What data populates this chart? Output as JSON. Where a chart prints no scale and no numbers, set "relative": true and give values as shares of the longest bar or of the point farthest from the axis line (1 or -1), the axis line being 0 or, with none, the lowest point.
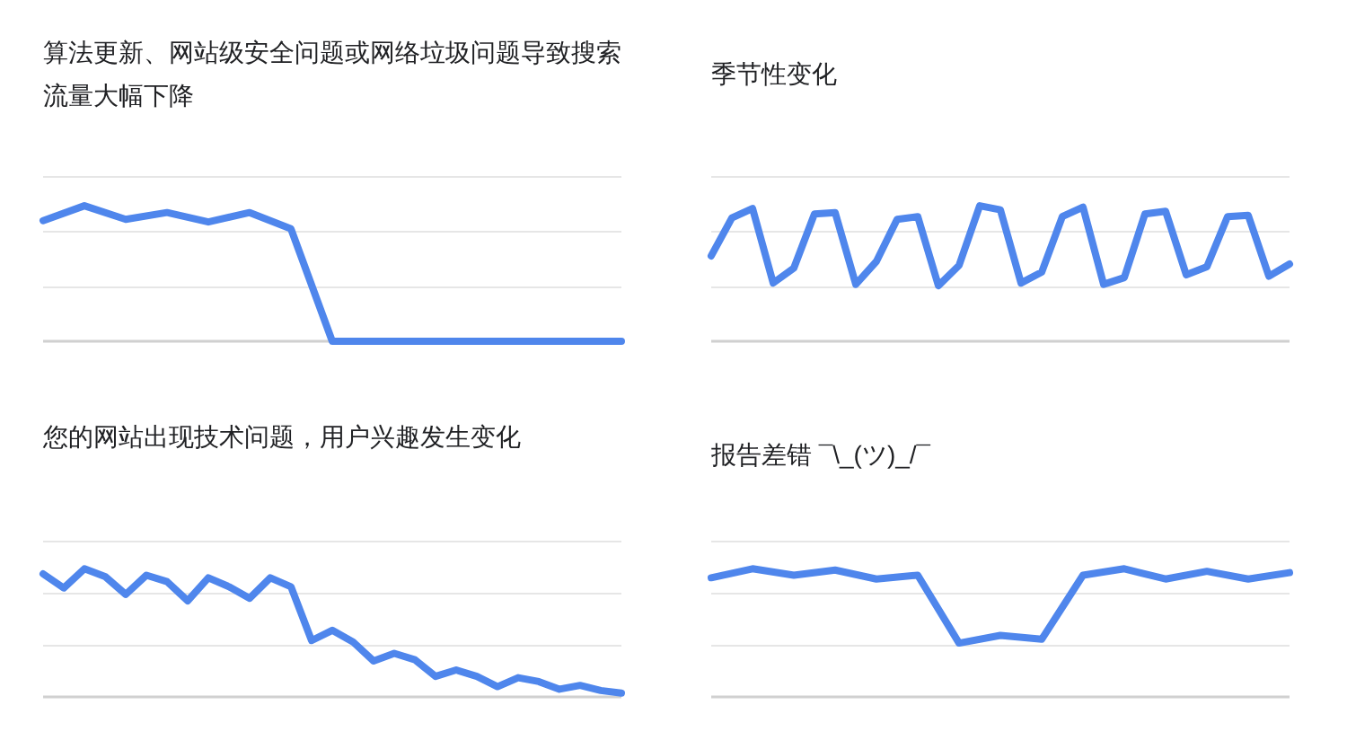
{
  "chart_data": [
    {
      "type": "line",
      "title": "算法更新、网站级安全问题或网络垃圾问题导致搜索流量大幅下降",
      "relative": true,
      "color": "#4f86ec",
      "categories": [
        null,
        null,
        null,
        null,
        null,
        null,
        null,
        null,
        null,
        null,
        null,
        null,
        null,
        null,
        null
      ],
      "values": [
        0.89,
        1,
        0.9,
        0.95,
        0.88,
        0.95,
        0.83,
        0,
        0,
        0,
        0,
        0,
        0,
        0,
        0
      ]
    },
    {
      "type": "line",
      "title": "季节性变化",
      "relative": true,
      "color": "#4f86ec",
      "categories": [
        null,
        null,
        null,
        null,
        null,
        null,
        null,
        null,
        null,
        null,
        null,
        null,
        null,
        null,
        null,
        null,
        null,
        null,
        null,
        null,
        null,
        null,
        null,
        null,
        null,
        null,
        null,
        null,
        null
      ],
      "values": [
        0.63,
        0.91,
        0.98,
        0.43,
        0.54,
        0.94,
        0.95,
        0.42,
        0.59,
        0.9,
        0.92,
        0.41,
        0.56,
        1,
        0.97,
        0.43,
        0.51,
        0.92,
        0.99,
        0.42,
        0.47,
        0.94,
        0.96,
        0.49,
        0.55,
        0.92,
        0.93,
        0.48,
        0.57
      ]
    },
    {
      "type": "line",
      "title": "您的网站出现技术问题，用户兴趣发生变化",
      "relative": true,
      "color": "#4f86ec",
      "categories": [
        null,
        null,
        null,
        null,
        null,
        null,
        null,
        null,
        null,
        null,
        null,
        null,
        null,
        null,
        null,
        null,
        null,
        null,
        null,
        null,
        null,
        null,
        null,
        null,
        null,
        null,
        null,
        null,
        null
      ],
      "values": [
        0.96,
        0.85,
        1,
        0.94,
        0.8,
        0.95,
        0.9,
        0.75,
        0.93,
        0.86,
        0.77,
        0.93,
        0.86,
        0.44,
        0.52,
        0.43,
        0.28,
        0.34,
        0.29,
        0.16,
        0.21,
        0.16,
        0.08,
        0.15,
        0.12,
        0.06,
        0.09,
        0.05,
        0.03
      ]
    },
    {
      "type": "line",
      "title": "报告差错 ¯\\_(ツ)_/¯",
      "relative": true,
      "color": "#4f86ec",
      "categories": [
        null,
        null,
        null,
        null,
        null,
        null,
        null,
        null,
        null,
        null,
        null,
        null,
        null,
        null,
        null
      ],
      "values": [
        0.93,
        1,
        0.95,
        0.99,
        0.92,
        0.95,
        0.42,
        0.48,
        0.45,
        0.95,
        1,
        0.92,
        0.98,
        0.92,
        0.97
      ]
    }
  ]
}
